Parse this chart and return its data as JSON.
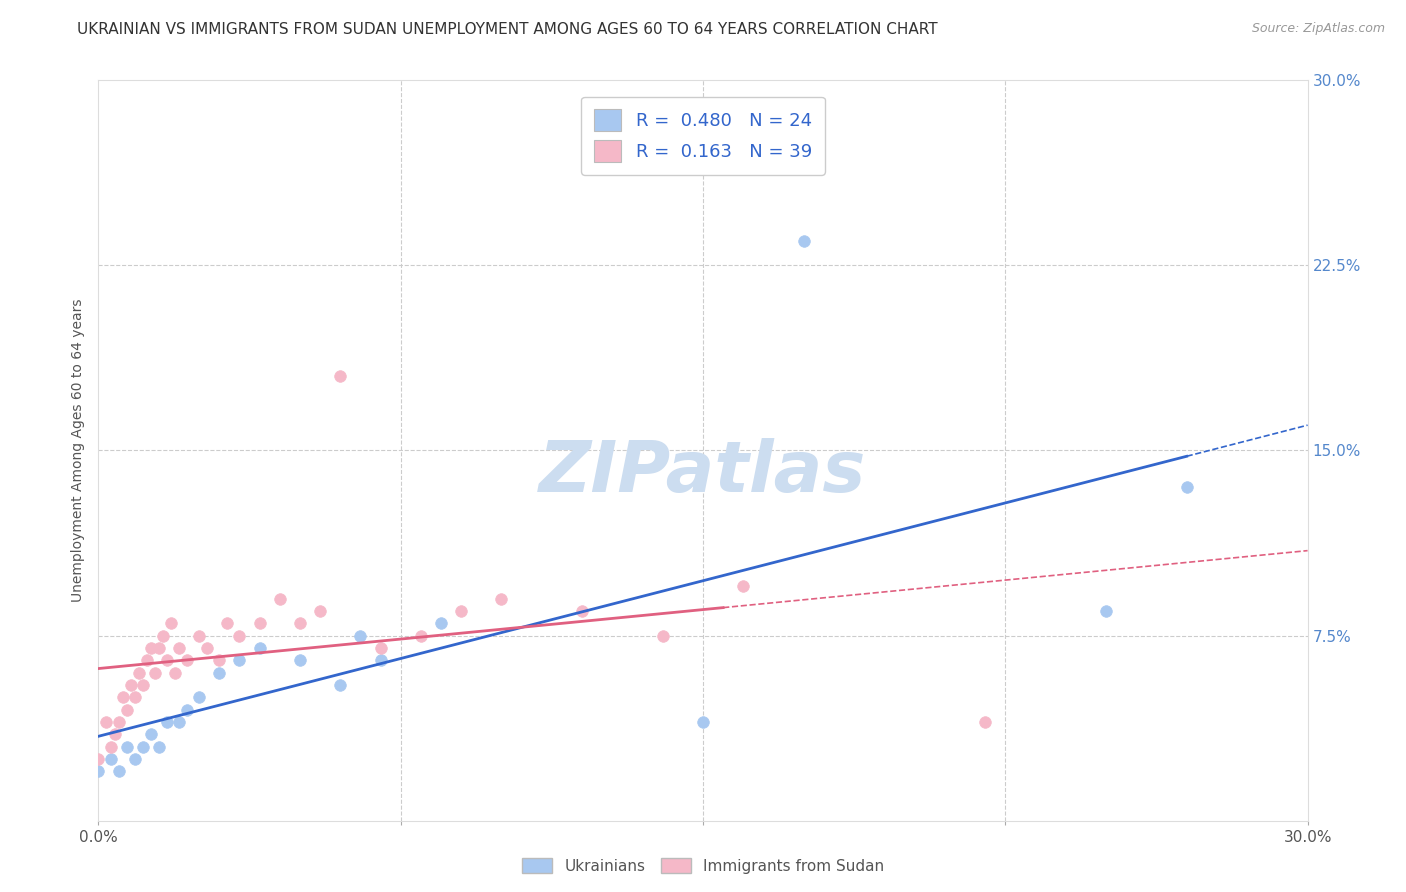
{
  "title": "UKRAINIAN VS IMMIGRANTS FROM SUDAN UNEMPLOYMENT AMONG AGES 60 TO 64 YEARS CORRELATION CHART",
  "source": "Source: ZipAtlas.com",
  "ylabel": "Unemployment Among Ages 60 to 64 years",
  "xlim": [
    0.0,
    0.3
  ],
  "ylim": [
    0.0,
    0.3
  ],
  "blue_R": 0.48,
  "blue_N": 24,
  "pink_R": 0.163,
  "pink_N": 39,
  "blue_color": "#a8c8f0",
  "pink_color": "#f5b8c8",
  "blue_line_color": "#3366cc",
  "pink_line_color": "#e06080",
  "watermark": "ZIPatlas",
  "watermark_color": "#ccddf0",
  "blue_scatter_x": [
    0.0,
    0.003,
    0.005,
    0.007,
    0.009,
    0.011,
    0.013,
    0.015,
    0.017,
    0.02,
    0.022,
    0.025,
    0.03,
    0.035,
    0.04,
    0.05,
    0.06,
    0.065,
    0.07,
    0.085,
    0.15,
    0.175,
    0.25,
    0.27
  ],
  "blue_scatter_y": [
    0.02,
    0.025,
    0.02,
    0.03,
    0.025,
    0.03,
    0.035,
    0.03,
    0.04,
    0.04,
    0.045,
    0.05,
    0.06,
    0.065,
    0.07,
    0.065,
    0.055,
    0.075,
    0.065,
    0.08,
    0.04,
    0.235,
    0.085,
    0.135
  ],
  "pink_scatter_x": [
    0.0,
    0.002,
    0.003,
    0.004,
    0.005,
    0.006,
    0.007,
    0.008,
    0.009,
    0.01,
    0.011,
    0.012,
    0.013,
    0.014,
    0.015,
    0.016,
    0.017,
    0.018,
    0.019,
    0.02,
    0.022,
    0.025,
    0.027,
    0.03,
    0.032,
    0.035,
    0.04,
    0.045,
    0.05,
    0.055,
    0.06,
    0.07,
    0.08,
    0.09,
    0.1,
    0.12,
    0.14,
    0.16,
    0.22
  ],
  "pink_scatter_y": [
    0.025,
    0.04,
    0.03,
    0.035,
    0.04,
    0.05,
    0.045,
    0.055,
    0.05,
    0.06,
    0.055,
    0.065,
    0.07,
    0.06,
    0.07,
    0.075,
    0.065,
    0.08,
    0.06,
    0.07,
    0.065,
    0.075,
    0.07,
    0.065,
    0.08,
    0.075,
    0.08,
    0.09,
    0.08,
    0.085,
    0.18,
    0.07,
    0.075,
    0.085,
    0.09,
    0.085,
    0.075,
    0.095,
    0.04
  ],
  "grid_color": "#cccccc",
  "bg_color": "#ffffff",
  "title_fontsize": 11,
  "axis_label_fontsize": 10,
  "tick_fontsize": 11,
  "legend_fontsize": 13,
  "watermark_fontsize": 52,
  "blue_line_x_end": 0.27,
  "pink_line_x_end": 0.16
}
